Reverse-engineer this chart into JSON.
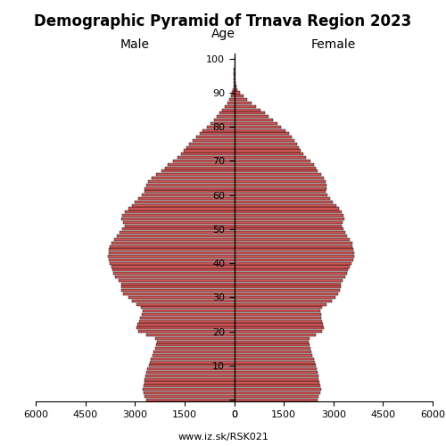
{
  "title": "Demographic Pyramid of Trnava Region 2023",
  "xlabel_left": "Male",
  "xlabel_right": "Female",
  "ylabel": "Age",
  "source": "www.iz.sk/RSK021",
  "xlim": 6000,
  "bar_color": "#CC5555",
  "edge_color": "#000000",
  "ages": [
    0,
    1,
    2,
    3,
    4,
    5,
    6,
    7,
    8,
    9,
    10,
    11,
    12,
    13,
    14,
    15,
    16,
    17,
    18,
    19,
    20,
    21,
    22,
    23,
    24,
    25,
    26,
    27,
    28,
    29,
    30,
    31,
    32,
    33,
    34,
    35,
    36,
    37,
    38,
    39,
    40,
    41,
    42,
    43,
    44,
    45,
    46,
    47,
    48,
    49,
    50,
    51,
    52,
    53,
    54,
    55,
    56,
    57,
    58,
    59,
    60,
    61,
    62,
    63,
    64,
    65,
    66,
    67,
    68,
    69,
    70,
    71,
    72,
    73,
    74,
    75,
    76,
    77,
    78,
    79,
    80,
    81,
    82,
    83,
    84,
    85,
    86,
    87,
    88,
    89,
    90,
    91,
    92,
    93,
    94,
    95,
    96,
    97,
    98,
    99,
    100
  ],
  "male": [
    2650,
    2700,
    2730,
    2760,
    2740,
    2720,
    2700,
    2680,
    2660,
    2620,
    2580,
    2540,
    2510,
    2470,
    2430,
    2390,
    2350,
    2320,
    2380,
    2650,
    2900,
    2950,
    2920,
    2880,
    2840,
    2800,
    2760,
    2820,
    2960,
    3100,
    3200,
    3350,
    3400,
    3420,
    3410,
    3500,
    3600,
    3650,
    3680,
    3700,
    3750,
    3800,
    3820,
    3800,
    3780,
    3760,
    3700,
    3620,
    3540,
    3460,
    3380,
    3300,
    3350,
    3400,
    3380,
    3300,
    3200,
    3100,
    3000,
    2900,
    2780,
    2700,
    2700,
    2650,
    2600,
    2500,
    2350,
    2200,
    2100,
    2000,
    1850,
    1700,
    1600,
    1520,
    1450,
    1360,
    1250,
    1150,
    1050,
    950,
    830,
    720,
    620,
    530,
    450,
    360,
    270,
    200,
    140,
    90,
    55,
    35,
    20,
    12,
    7,
    4,
    2,
    1,
    0,
    0,
    0
  ],
  "female": [
    2520,
    2560,
    2590,
    2620,
    2600,
    2580,
    2560,
    2540,
    2520,
    2490,
    2460,
    2430,
    2400,
    2370,
    2340,
    2310,
    2280,
    2250,
    2280,
    2480,
    2650,
    2700,
    2680,
    2660,
    2640,
    2620,
    2600,
    2660,
    2800,
    2950,
    3050,
    3150,
    3200,
    3220,
    3210,
    3280,
    3360,
    3400,
    3440,
    3480,
    3540,
    3600,
    3640,
    3620,
    3600,
    3580,
    3560,
    3490,
    3420,
    3360,
    3300,
    3240,
    3280,
    3320,
    3300,
    3240,
    3160,
    3080,
    2980,
    2900,
    2820,
    2760,
    2800,
    2780,
    2760,
    2720,
    2620,
    2520,
    2460,
    2400,
    2300,
    2180,
    2080,
    2000,
    1960,
    1900,
    1820,
    1740,
    1650,
    1540,
    1420,
    1300,
    1160,
    1040,
    920,
    790,
    650,
    520,
    390,
    270,
    170,
    105,
    68,
    42,
    25,
    14,
    7,
    3,
    1,
    0,
    0
  ]
}
